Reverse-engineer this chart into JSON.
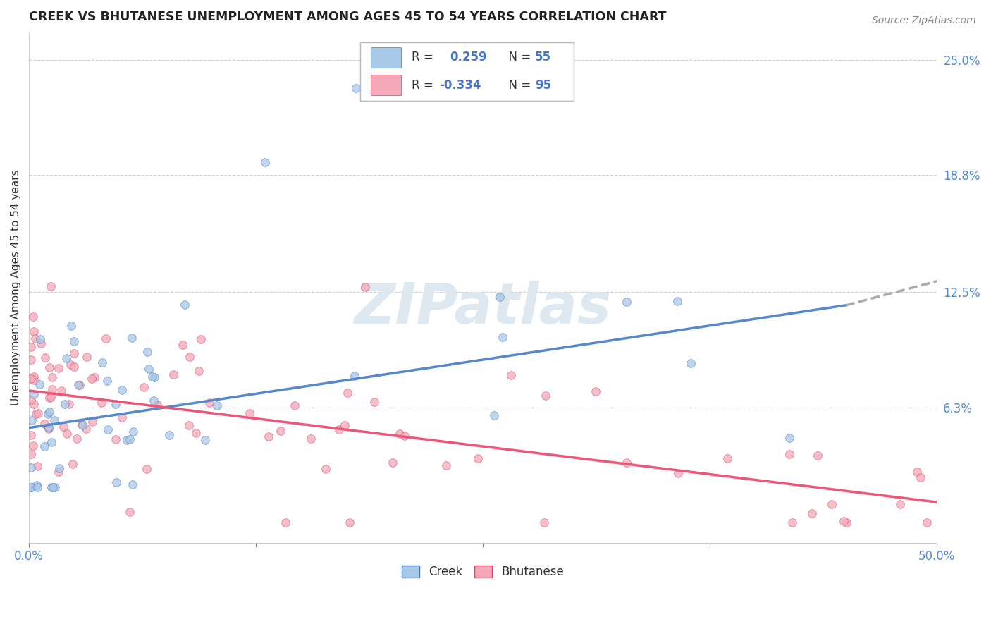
{
  "title": "CREEK VS BHUTANESE UNEMPLOYMENT AMONG AGES 45 TO 54 YEARS CORRELATION CHART",
  "source": "Source: ZipAtlas.com",
  "ylabel": "Unemployment Among Ages 45 to 54 years",
  "xlim": [
    0.0,
    0.5
  ],
  "ylim": [
    -0.01,
    0.265
  ],
  "ytick_labels_right": [
    "25.0%",
    "18.8%",
    "12.5%",
    "6.3%"
  ],
  "ytick_vals_right": [
    0.25,
    0.188,
    0.125,
    0.063
  ],
  "creek_color": "#a8c8e8",
  "bhutanese_color": "#f4a8b8",
  "creek_line_color": "#5588cc",
  "bhutanese_line_color": "#ee5577",
  "creek_edge_color": "#4477bb",
  "bhutanese_edge_color": "#dd4466",
  "trend_line_dash_color": "#aaaaaa",
  "background_color": "#ffffff",
  "grid_color": "#cccccc",
  "legend_text_color": "#4477cc",
  "creek_R": 0.259,
  "creek_N": 55,
  "bhutanese_R": -0.334,
  "bhutanese_N": 95,
  "creek_trend": [
    0.0,
    0.45,
    0.052,
    0.118
  ],
  "creek_extend": [
    0.45,
    0.52,
    0.118,
    0.136
  ],
  "bhutanese_trend": [
    0.0,
    0.5,
    0.072,
    0.012
  ]
}
